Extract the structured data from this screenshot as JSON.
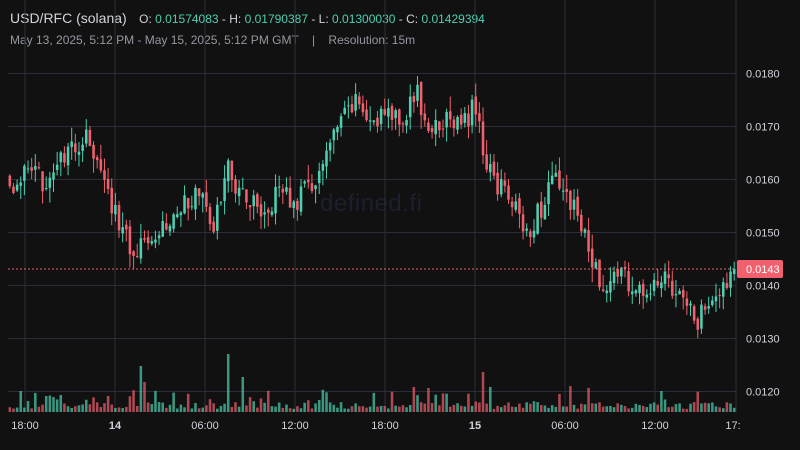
{
  "header": {
    "symbol": "USD/RFC (solana)",
    "open_key": "O:",
    "open": "0.01574083",
    "high_key": "H:",
    "high": "0.01790387",
    "low_key": "L:",
    "low": "0.01300030",
    "close_key": "C:",
    "close": "0.01429394",
    "range": "May 13, 2025, 5:12 PM - May 15, 2025, 5:12 PM GMT",
    "separator": "|",
    "resolution": "Resolution: 15m"
  },
  "watermark": "defined.fi",
  "colors": {
    "background": "#111111",
    "up": "#4dd0b1",
    "down": "#f0616d",
    "grid": "#2a2e39",
    "last_price": "#f0616d"
  },
  "chart_data": {
    "type": "candlestick",
    "y_ticks": [
      "0.0180",
      "0.0170",
      "0.0160",
      "0.0150",
      "0.0140",
      "0.0130",
      "0.0120"
    ],
    "ylim": [
      0.01165,
      0.01835
    ],
    "last_price_label": "0.0143",
    "last_price": 0.01431,
    "x_tick_labels": [
      {
        "text": "18:00",
        "hours": 0,
        "bold": false
      },
      {
        "text": "14",
        "hours": 6,
        "bold": true
      },
      {
        "text": "06:00",
        "hours": 12,
        "bold": false
      },
      {
        "text": "12:00",
        "hours": 18,
        "bold": false
      },
      {
        "text": "18:00",
        "hours": 24,
        "bold": false
      },
      {
        "text": "15",
        "hours": 30,
        "bold": true
      },
      {
        "text": "06:00",
        "hours": 36,
        "bold": false
      },
      {
        "text": "12:00",
        "hours": 42,
        "bold": false
      },
      {
        "text": "17:",
        "hours": 47.2,
        "bold": false
      }
    ],
    "close_anchors": [
      [
        0,
        0.0158
      ],
      [
        4,
        0.0161
      ],
      [
        9,
        0.016
      ],
      [
        14,
        0.0163
      ],
      [
        18,
        0.0166
      ],
      [
        22,
        0.0168
      ],
      [
        25,
        0.016
      ],
      [
        29,
        0.0154
      ],
      [
        34,
        0.0146
      ],
      [
        38,
        0.015
      ],
      [
        44,
        0.0152
      ],
      [
        48,
        0.0156
      ],
      [
        52,
        0.0157
      ],
      [
        56,
        0.0151
      ],
      [
        60,
        0.0162
      ],
      [
        64,
        0.0157
      ],
      [
        70,
        0.0154
      ],
      [
        74,
        0.0158
      ],
      [
        79,
        0.0156
      ],
      [
        84,
        0.016
      ],
      [
        88,
        0.0166
      ],
      [
        92,
        0.0172
      ],
      [
        96,
        0.0175
      ],
      [
        100,
        0.017
      ],
      [
        104,
        0.0173
      ],
      [
        108,
        0.0172
      ],
      [
        112,
        0.0176
      ],
      [
        116,
        0.0168
      ],
      [
        120,
        0.0172
      ],
      [
        124,
        0.017
      ],
      [
        128,
        0.0174
      ],
      [
        130,
        0.0165
      ],
      [
        134,
        0.0159
      ],
      [
        138,
        0.0156
      ],
      [
        142,
        0.015
      ],
      [
        146,
        0.0155
      ],
      [
        150,
        0.016
      ],
      [
        154,
        0.0156
      ],
      [
        158,
        0.0149
      ],
      [
        162,
        0.014
      ],
      [
        166,
        0.0142
      ],
      [
        170,
        0.0141
      ],
      [
        174,
        0.0137
      ],
      [
        178,
        0.0142
      ],
      [
        182,
        0.0139
      ],
      [
        186,
        0.0137
      ],
      [
        188,
        0.0132
      ],
      [
        192,
        0.0137
      ],
      [
        196,
        0.0139
      ],
      [
        199,
        0.0143
      ]
    ],
    "volume_note": "relative bar heights"
  }
}
